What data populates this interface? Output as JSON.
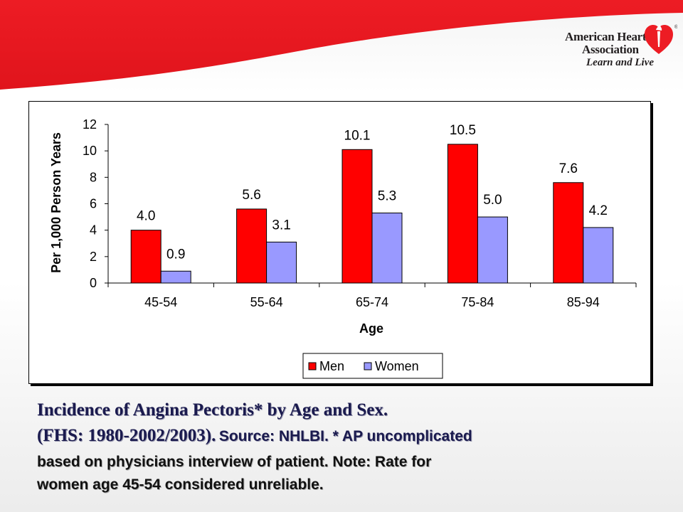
{
  "brand": {
    "org_line1": "American Heart",
    "org_line2": "Association",
    "tagline": "Learn and Live",
    "registered_mark": "®",
    "red": "#ed1c24"
  },
  "caption": {
    "title": "Incidence of Angina Pectoris* by Age and Sex.",
    "period": "(FHS: 1980-2002/2003).",
    "source": "Source: NHLBI.  * AP uncomplicated",
    "line3": "based on physicians interview of patient.  Note: Rate for",
    "line4": "women age 45-54 considered unreliable."
  },
  "chart_data": {
    "type": "bar",
    "categories": [
      "45-54",
      "55-64",
      "65-74",
      "75-84",
      "85-94"
    ],
    "series": [
      {
        "name": "Men",
        "values": [
          4.0,
          5.6,
          10.1,
          10.5,
          7.6
        ],
        "labels": [
          "4.0",
          "5.6",
          "10.1",
          "10.5",
          "7.6"
        ],
        "color": "#ff0000"
      },
      {
        "name": "Women",
        "values": [
          0.9,
          3.1,
          5.3,
          5.0,
          4.2
        ],
        "labels": [
          "0.9",
          "3.1",
          "5.3",
          "5.0",
          "4.2"
        ],
        "color": "#9999ff"
      }
    ],
    "xlabel": "Age",
    "ylabel": "Per 1,000 Person Years",
    "ylim": [
      0,
      12
    ],
    "yticks": [
      "0",
      "2",
      "4",
      "6",
      "8",
      "10",
      "12"
    ],
    "grid": false,
    "legend_position": "bottom"
  }
}
